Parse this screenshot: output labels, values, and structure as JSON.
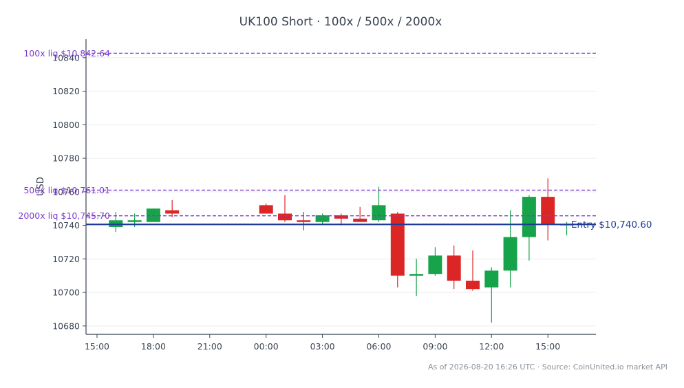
{
  "chart_data": {
    "type": "candlestick",
    "title": "UK100 Short · 100x / 500x / 2000x",
    "ylabel": "USD",
    "xlabel": "",
    "ylim": [
      10675,
      10851
    ],
    "grid": true,
    "x_ticks": [
      "15:00",
      "18:00",
      "21:00",
      "00:00",
      "03:00",
      "06:00",
      "09:00",
      "12:00",
      "15:00"
    ],
    "y_ticks": [
      "10680",
      "10700",
      "10720",
      "10740",
      "10760",
      "10780",
      "10800",
      "10820",
      "10840"
    ],
    "colors": {
      "up": "#16a34a",
      "down": "#dc2626",
      "liq": "#7d3ccf",
      "entry": "#1f3b99",
      "grid": "#ececec",
      "axis": "#3a4452"
    },
    "candles": [
      {
        "time": "16:00",
        "open": 10739,
        "high": 10748,
        "low": 10736,
        "close": 10743
      },
      {
        "time": "17:00",
        "open": 10742,
        "high": 10747,
        "low": 10739,
        "close": 10743
      },
      {
        "time": "18:00",
        "open": 10742,
        "high": 10750,
        "low": 10742,
        "close": 10750
      },
      {
        "time": "19:00",
        "open": 10749,
        "high": 10755,
        "low": 10745,
        "close": 10747
      },
      {
        "time": "00:00",
        "open": 10752,
        "high": 10753,
        "low": 10747,
        "close": 10747
      },
      {
        "time": "01:00",
        "open": 10747,
        "high": 10758,
        "low": 10742,
        "close": 10743
      },
      {
        "time": "02:00",
        "open": 10743,
        "high": 10748,
        "low": 10737,
        "close": 10742
      },
      {
        "time": "03:00",
        "open": 10742,
        "high": 10747,
        "low": 10741,
        "close": 10746
      },
      {
        "time": "04:00",
        "open": 10746,
        "high": 10747,
        "low": 10740,
        "close": 10744
      },
      {
        "time": "05:00",
        "open": 10744,
        "high": 10751,
        "low": 10742,
        "close": 10742
      },
      {
        "time": "06:00",
        "open": 10743,
        "high": 10763,
        "low": 10742,
        "close": 10752
      },
      {
        "time": "07:00",
        "open": 10747,
        "high": 10748,
        "low": 10703,
        "close": 10710
      },
      {
        "time": "08:00",
        "open": 10710,
        "high": 10720,
        "low": 10698,
        "close": 10711
      },
      {
        "time": "09:00",
        "open": 10711,
        "high": 10727,
        "low": 10710,
        "close": 10722
      },
      {
        "time": "10:00",
        "open": 10722,
        "high": 10728,
        "low": 10702,
        "close": 10707
      },
      {
        "time": "11:00",
        "open": 10707,
        "high": 10725,
        "low": 10701,
        "close": 10702
      },
      {
        "time": "12:00",
        "open": 10703,
        "high": 10715,
        "low": 10682,
        "close": 10713
      },
      {
        "time": "13:00",
        "open": 10713,
        "high": 10749,
        "low": 10703,
        "close": 10733
      },
      {
        "time": "14:00",
        "open": 10733,
        "high": 10758,
        "low": 10719,
        "close": 10757
      },
      {
        "time": "15:00",
        "open": 10757,
        "high": 10768,
        "low": 10731,
        "close": 10741
      },
      {
        "time": "16:00",
        "open": 10741,
        "high": 10742,
        "low": 10734,
        "close": 10741
      }
    ],
    "lines": [
      {
        "label": "100x liq $10,842.64",
        "value": 10842.64,
        "style": "dashed"
      },
      {
        "label": "500x liq $10,761.01",
        "value": 10761.01,
        "style": "dashed"
      },
      {
        "label": "2000x liq $10,745.70",
        "value": 10745.7,
        "style": "dashed"
      },
      {
        "label": "Entry $10,740.60",
        "value": 10740.6,
        "style": "solid"
      }
    ]
  },
  "footer": "As of 2026-08-20 16:26 UTC · Source: CoinUnited.io market API"
}
